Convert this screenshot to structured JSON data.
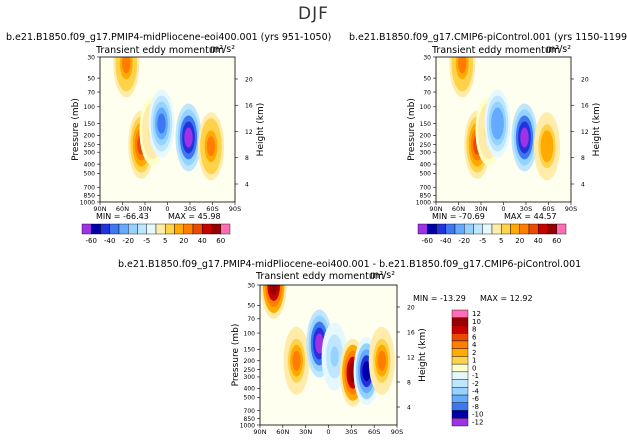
{
  "page": {
    "title": "DJF",
    "panel_titles": [
      "b.e21.B1850.f09_g17.PMIP4-midPliocene-eoi400.001  (yrs 951-1050)",
      "b.e21.B1850.f09_g17.CMIP6-piControl.001  (yrs 1150-1199)",
      "b.e21.B1850.f09_g17.PMIP4-midPliocene-eoi400.001  -  b.e21.B1850.f09_g17.CMIP6-piControl.001"
    ],
    "subtitle": "Transient eddy momentum",
    "units": "m²/s²"
  },
  "colors": {
    "div_palette": [
      "#a032e6",
      "#0000aa",
      "#2332dc",
      "#3c78f0",
      "#64aaff",
      "#96d2ff",
      "#bee6ff",
      "#e6f8ff",
      "#ffffc8",
      "#ffebaa",
      "#ffd24b",
      "#ffaa00",
      "#ff7d00",
      "#eb4b00",
      "#c80000",
      "#960000",
      "#ff6eb4"
    ]
  },
  "chart_data": [
    {
      "type": "heatmap",
      "panel": "pliocene",
      "x_ticks": [
        "90N",
        "60N",
        "30N",
        "0",
        "30S",
        "60S",
        "90S"
      ],
      "y_ticks": [
        "30",
        "50",
        "70",
        "100",
        "150",
        "200",
        "250",
        "300",
        "400",
        "500",
        "700",
        "850",
        "1000"
      ],
      "ylabel": "Pressure (mb)",
      "y2label": "Height (km)",
      "y2_ticks": [
        "20",
        "16",
        "12",
        "8",
        "4"
      ],
      "min": "-66.43",
      "max": "45.98",
      "colorbar": [
        "-60",
        "-40",
        "-20",
        "-5",
        "5",
        "20",
        "40",
        "60"
      ],
      "features": [
        {
          "lat": 55,
          "p": 35,
          "value": 35
        },
        {
          "lat": 35,
          "p": 250,
          "value": 45
        },
        {
          "lat": 20,
          "p": 180,
          "value": 15
        },
        {
          "lat": 8,
          "p": 150,
          "value": -45
        },
        {
          "lat": -28,
          "p": 210,
          "value": -66
        },
        {
          "lat": -58,
          "p": 260,
          "value": 35
        }
      ]
    },
    {
      "type": "heatmap",
      "panel": "picontrol",
      "x_ticks": [
        "90N",
        "60N",
        "30N",
        "0",
        "30S",
        "60S",
        "90S"
      ],
      "y_ticks": [
        "30",
        "50",
        "70",
        "100",
        "150",
        "200",
        "250",
        "300",
        "400",
        "500",
        "700",
        "850",
        "1000"
      ],
      "ylabel": "Pressure (mb)",
      "y2label": "Height (km)",
      "y2_ticks": [
        "20",
        "16",
        "12",
        "8",
        "4"
      ],
      "min": "-70.69",
      "max": "44.57",
      "colorbar": [
        "-60",
        "-40",
        "-20",
        "-5",
        "5",
        "20",
        "40",
        "60"
      ],
      "features": [
        {
          "lat": 55,
          "p": 35,
          "value": 35
        },
        {
          "lat": 35,
          "p": 250,
          "value": 44
        },
        {
          "lat": 20,
          "p": 180,
          "value": 15
        },
        {
          "lat": 8,
          "p": 150,
          "value": -40
        },
        {
          "lat": -28,
          "p": 210,
          "value": -70
        },
        {
          "lat": -58,
          "p": 260,
          "value": 30
        }
      ]
    },
    {
      "type": "heatmap",
      "panel": "difference",
      "x_ticks": [
        "90N",
        "60N",
        "30N",
        "0",
        "30S",
        "60S",
        "90S"
      ],
      "y_ticks": [
        "30",
        "50",
        "70",
        "100",
        "150",
        "200",
        "250",
        "300",
        "400",
        "500",
        "700",
        "850",
        "1000"
      ],
      "ylabel": "Pressure (mb)",
      "y2label": "Height (km)",
      "y2_ticks": [
        "20",
        "16",
        "12",
        "8",
        "4"
      ],
      "min": "-13.29",
      "max": "12.92",
      "colorbar": [
        "12",
        "10",
        "8",
        "6",
        "4",
        "2",
        "1",
        "0",
        "-1",
        "-2",
        "-4",
        "-6",
        "-8",
        "-10",
        "-12"
      ],
      "features": [
        {
          "lat": 72,
          "p": 30,
          "value": 12
        },
        {
          "lat": 42,
          "p": 200,
          "value": 6
        },
        {
          "lat": 12,
          "p": 130,
          "value": -13
        },
        {
          "lat": -8,
          "p": 180,
          "value": -5
        },
        {
          "lat": -32,
          "p": 270,
          "value": 12
        },
        {
          "lat": -50,
          "p": 260,
          "value": -12
        },
        {
          "lat": -70,
          "p": 200,
          "value": 6
        }
      ]
    }
  ]
}
